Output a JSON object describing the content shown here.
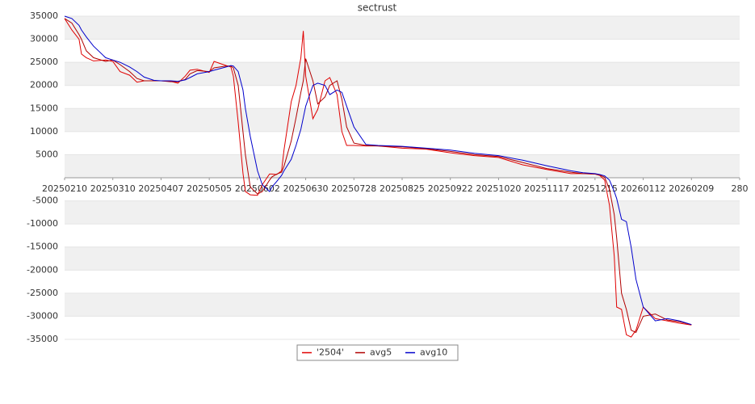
{
  "chart_data": {
    "type": "line",
    "title": "sectrust",
    "x": [
      0,
      3,
      6,
      7,
      9,
      12,
      17,
      20,
      23,
      27,
      30,
      33,
      37,
      40,
      44,
      47,
      50,
      52,
      55,
      60,
      62,
      67,
      69,
      70,
      72,
      74,
      75,
      77,
      80,
      82,
      85,
      86,
      88,
      90,
      91,
      94,
      96,
      98,
      99,
      100,
      103,
      105,
      108,
      110,
      113,
      115,
      117,
      120,
      125,
      130,
      140,
      150,
      160,
      170,
      180,
      190,
      200,
      210,
      215,
      220,
      222,
      224,
      226,
      228,
      229,
      231,
      233,
      235,
      237,
      240,
      245,
      250,
      255,
      260
    ],
    "series": [
      {
        "name": "'2504'",
        "color": "#e00000",
        "values": [
          34500,
          32000,
          30000,
          26800,
          26000,
          25300,
          25500,
          25200,
          23000,
          22200,
          20700,
          21000,
          21000,
          21000,
          20900,
          20500,
          22000,
          23300,
          23500,
          22800,
          25200,
          24300,
          24000,
          22000,
          12000,
          1000,
          -3000,
          -3700,
          -3800,
          -1500,
          800,
          800,
          700,
          1500,
          6000,
          16500,
          20000,
          26000,
          31800,
          22000,
          12800,
          14800,
          21000,
          21700,
          18000,
          10000,
          7000,
          7000,
          6900,
          6900,
          6400,
          6200,
          5400,
          4800,
          4400,
          2800,
          1800,
          900,
          900,
          800,
          500,
          -500,
          -6000,
          -17000,
          -28000,
          -28500,
          -34000,
          -34500,
          -33000,
          -28000,
          -30500,
          -31000,
          -31500,
          -31900
        ]
      },
      {
        "name": "avg5",
        "color": "#b00000",
        "values": [
          34500,
          33500,
          31000,
          30000,
          27500,
          26000,
          25200,
          25500,
          24500,
          23000,
          21500,
          21000,
          21000,
          21000,
          20800,
          20800,
          21300,
          22500,
          23200,
          23000,
          23800,
          24200,
          24200,
          23800,
          20000,
          10000,
          5000,
          -2000,
          -3500,
          -3000,
          -500,
          200,
          800,
          1200,
          2500,
          8000,
          13000,
          18500,
          21000,
          25800,
          21000,
          16000,
          17500,
          20000,
          21000,
          17000,
          11000,
          7500,
          7000,
          6900,
          6700,
          6300,
          5700,
          5000,
          4600,
          3300,
          2000,
          1200,
          900,
          800,
          600,
          100,
          -2500,
          -8000,
          -13000,
          -25000,
          -28500,
          -33000,
          -33500,
          -30000,
          -29500,
          -30800,
          -31200,
          -31800
        ]
      },
      {
        "name": "avg10",
        "color": "#0000cc",
        "values": [
          35000,
          34500,
          33000,
          32000,
          30500,
          28500,
          26000,
          25500,
          25000,
          24000,
          23000,
          21800,
          21100,
          21000,
          21000,
          20900,
          21200,
          21700,
          22500,
          23000,
          23300,
          24000,
          24300,
          24200,
          23000,
          19000,
          15000,
          9000,
          1500,
          -1500,
          -3000,
          -2000,
          -800,
          500,
          1500,
          4000,
          7000,
          10500,
          13000,
          15500,
          20000,
          20500,
          20000,
          18000,
          19000,
          18500,
          15500,
          11000,
          7200,
          7000,
          6800,
          6400,
          6000,
          5300,
          4800,
          3800,
          2600,
          1500,
          1100,
          900,
          700,
          400,
          -500,
          -3000,
          -4500,
          -9000,
          -9500,
          -15000,
          -22000,
          -28000,
          -31000,
          -30500,
          -31000,
          -31800
        ]
      }
    ],
    "xlim": [
      0,
      280
    ],
    "xticks": [
      {
        "value": 0,
        "label": "20250210"
      },
      {
        "value": 20,
        "label": "20250310"
      },
      {
        "value": 40,
        "label": "20250407"
      },
      {
        "value": 60,
        "label": "20250505"
      },
      {
        "value": 80,
        "label": "20250602"
      },
      {
        "value": 100,
        "label": "20250630"
      },
      {
        "value": 120,
        "label": "20250728"
      },
      {
        "value": 140,
        "label": "20250825"
      },
      {
        "value": 160,
        "label": "20250922"
      },
      {
        "value": 180,
        "label": "20251020"
      },
      {
        "value": 200,
        "label": "20251117"
      },
      {
        "value": 220,
        "label": "20251215"
      },
      {
        "value": 240,
        "label": "20260112"
      },
      {
        "value": 260,
        "label": "20260209"
      },
      280
    ],
    "ylim": [
      -35000,
      35000
    ],
    "yticks": [
      35000,
      30000,
      25000,
      20000,
      15000,
      10000,
      5000,
      -5000,
      -10000,
      -15000,
      -20000,
      -25000,
      -30000,
      -35000
    ],
    "grid": true,
    "legend": "bottom"
  }
}
